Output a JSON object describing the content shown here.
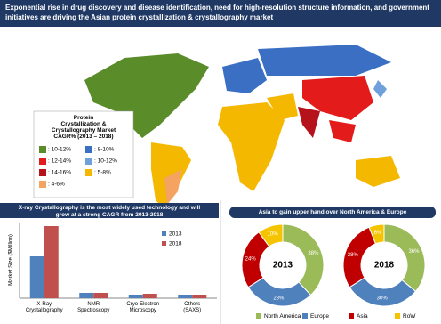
{
  "header": {
    "title": "Exponential rise in drug discovery and disease identification, need for high-resolution structure information, and government initiatives are driving the Asian protein crystallization & crystallography market"
  },
  "map": {
    "legend": {
      "title": "Protein Crystallization & Crystallography Market CAGR% (2013 – 2018)",
      "items": [
        {
          "label": ": 10-12%",
          "color": "#5b8c2a"
        },
        {
          "label": ": 8-10%",
          "color": "#3a6fc4"
        },
        {
          "label": ": 12-14%",
          "color": "#e31b1b"
        },
        {
          "label": ": 10-12%",
          "color": "#6fa0dc"
        },
        {
          "label": ": 14-16%",
          "color": "#b5121b"
        },
        {
          "label": ": 5-8%",
          "color": "#f5b800"
        },
        {
          "label": ": 4-6%",
          "color": "#f4a460"
        }
      ]
    }
  },
  "chart_data": [
    {
      "type": "bar",
      "title": "X-ray Crystallography is the most widely used technology and will grow at a strong CAGR from 2013-2018",
      "y_label": "Market Size ($Million)",
      "categories": [
        "X-Ray Crystallography",
        "NMR Spectroscopy",
        "Cryo-Electron Microscopy",
        "Others (SAXS)"
      ],
      "series": [
        {
          "name": "2013",
          "color": "#4f81bd",
          "values": [
            47,
            6,
            4,
            4
          ]
        },
        {
          "name": "2018",
          "color": "#c0504d",
          "values": [
            81,
            6,
            5,
            4
          ]
        }
      ],
      "ylim": [
        0,
        85
      ]
    },
    {
      "type": "pie",
      "chart_title": "Asia to gain upper hand over North America & Europe",
      "title": "2013",
      "categories": [
        "North America",
        "Europe",
        "Asia",
        "RoW"
      ],
      "colors": [
        "#9bbb59",
        "#4f81bd",
        "#c00000",
        "#f5c400"
      ],
      "values": [
        38,
        28,
        24,
        10
      ],
      "value_labels": [
        "38%",
        "28%",
        "24%",
        "10%"
      ]
    },
    {
      "type": "pie",
      "title": "2018",
      "categories": [
        "North America",
        "Europe",
        "Asia",
        "RoW"
      ],
      "colors": [
        "#9bbb59",
        "#4f81bd",
        "#c00000",
        "#f5c400"
      ],
      "values": [
        36,
        30,
        28,
        6
      ],
      "value_labels": [
        "36%",
        "30%",
        "28%",
        "6%"
      ]
    }
  ]
}
